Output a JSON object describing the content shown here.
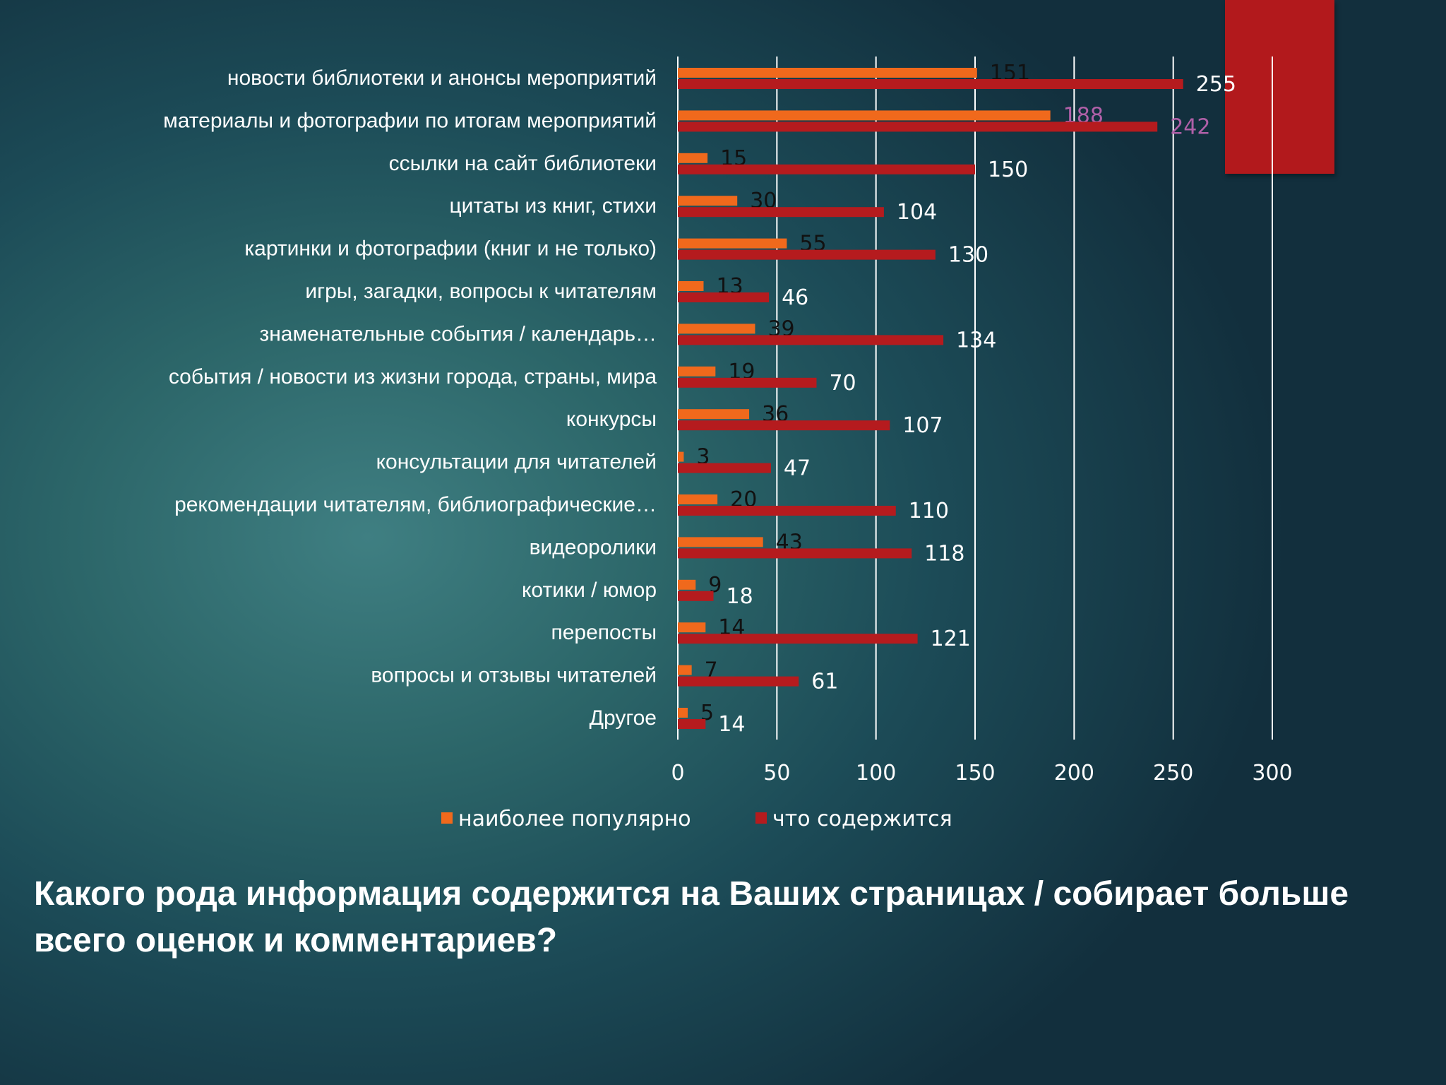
{
  "question": "Какого рода информация содержится на Ваших страницах / собирает больше всего оценок и комментариев?",
  "colors": {
    "popular": "#f0691c",
    "contains": "#b51b1e",
    "highlight_label": "#b060a8",
    "accent_block": "#b2191c"
  },
  "chart_data": {
    "type": "bar",
    "orientation": "horizontal",
    "categories": [
      "новости библиотеки и анонсы мероприятий",
      "материалы и фотографии по итогам мероприятий",
      "ссылки на сайт библиотеки",
      "цитаты из книг, стихи",
      "картинки и фотографии (книг и не только)",
      "игры, загадки, вопросы к читателям",
      "знаменательные события / календарь…",
      "события / новости из жизни города, страны, мира",
      "конкурсы",
      "консультации для читателей",
      "рекомендации читателям, библиографические…",
      "видеоролики",
      "котики / юмор",
      "перепосты",
      "вопросы и отзывы читателей",
      "Другое"
    ],
    "series": [
      {
        "name": "наиболее популярно",
        "values": [
          151,
          188,
          15,
          30,
          55,
          13,
          39,
          19,
          36,
          3,
          20,
          43,
          9,
          14,
          7,
          5
        ]
      },
      {
        "name": "что содержится",
        "values": [
          255,
          242,
          150,
          104,
          130,
          46,
          134,
          70,
          107,
          47,
          110,
          118,
          18,
          121,
          61,
          14
        ]
      }
    ],
    "xlim": [
      0,
      300
    ],
    "xticks": [
      0,
      50,
      100,
      150,
      200,
      250,
      300
    ],
    "grid": true,
    "legend": "bottom",
    "highlighted_category_index": 1
  }
}
